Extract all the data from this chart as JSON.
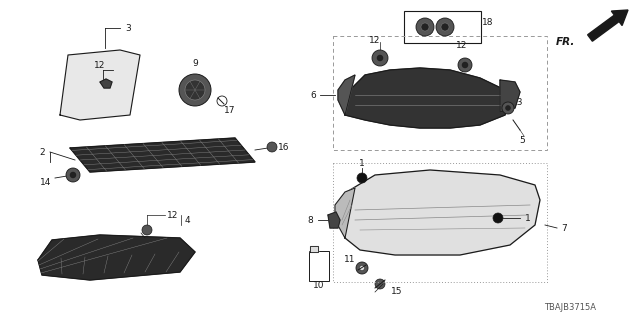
{
  "bg_color": "#ffffff",
  "diagram_code": "TBAJB3715A",
  "line_color": "#1a1a1a",
  "text_color": "#1a1a1a",
  "font_size": 6.5,
  "fig_w": 6.4,
  "fig_h": 3.2,
  "dpi": 100
}
